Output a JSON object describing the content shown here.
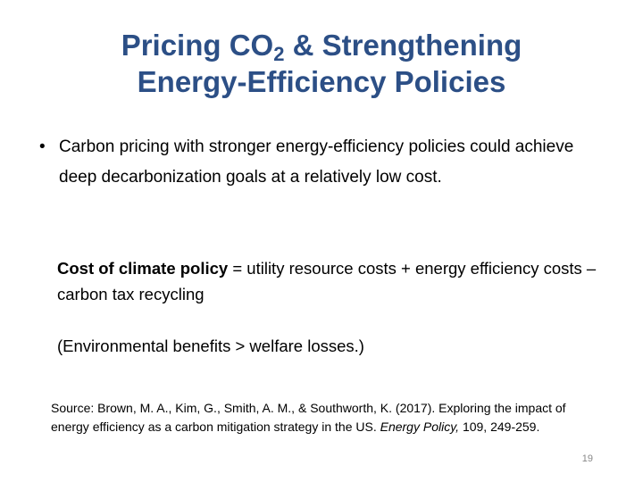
{
  "title": {
    "line1_before": "Pricing CO",
    "subscript": "2",
    "line1_after": " & Strengthening",
    "line2": "Energy-Efficiency Policies"
  },
  "bullet": "Carbon pricing with stronger energy-efficiency policies could achieve deep decarbonization goals at a relatively low cost.",
  "equation": {
    "bold": "Cost of climate policy",
    "rest": " = utility resource costs + energy efficiency costs – carbon tax recycling"
  },
  "note": "(Environmental benefits > welfare losses.)",
  "source": {
    "text": "Source: Brown, M. A., Kim, G., Smith, A. M., & Southworth, K. (2017). Exploring the impact of energy efficiency as a carbon mitigation strategy in the US. ",
    "journal": "Energy Policy,",
    "rest": " 109, 249-259."
  },
  "page_number": "19"
}
